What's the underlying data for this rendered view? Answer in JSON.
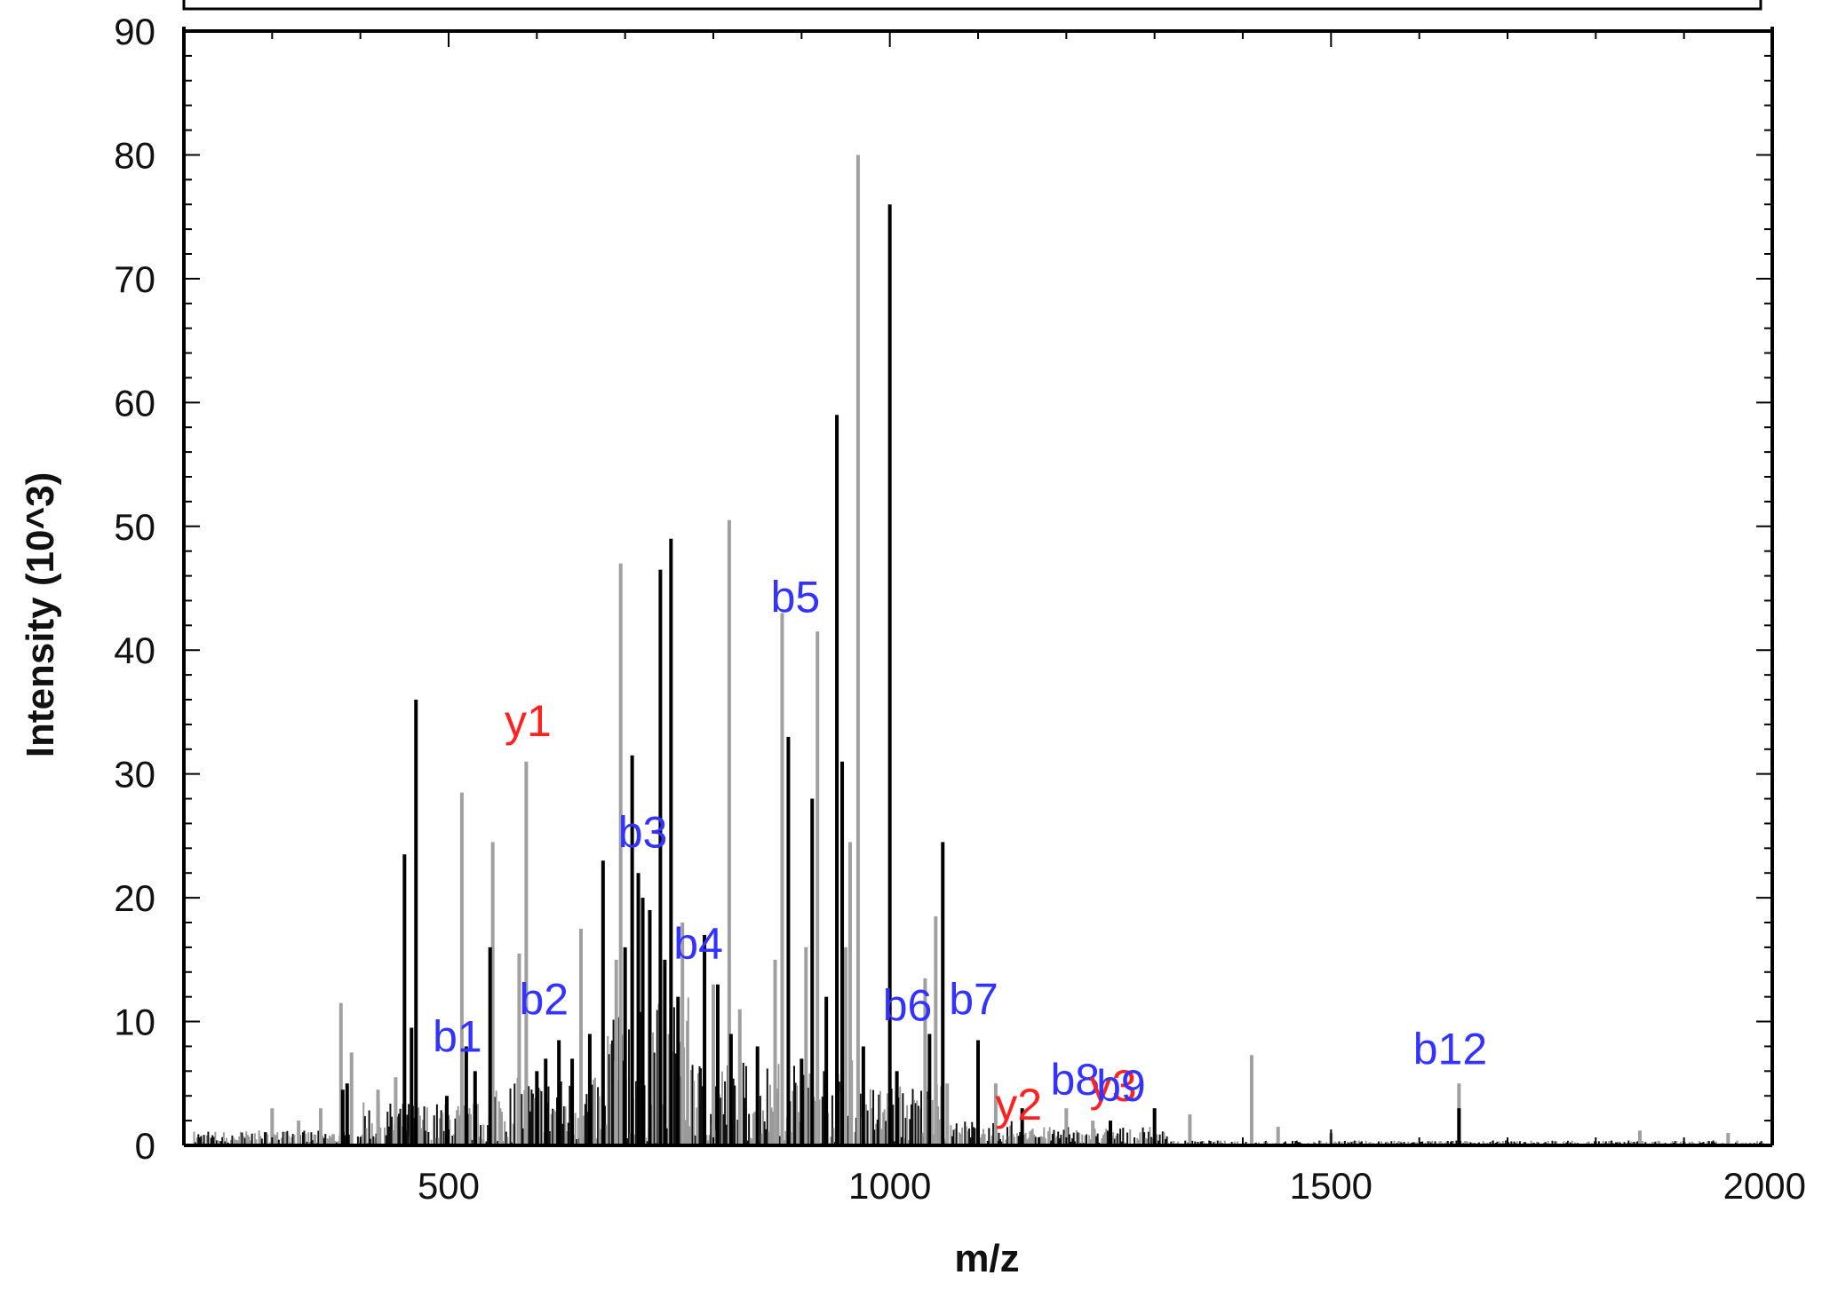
{
  "chart_data": {
    "type": "bar",
    "title_banner": "",
    "xlabel": "m/z",
    "ylabel": "Intensity (10^3)",
    "xlim": [
      200,
      2000
    ],
    "ylim": [
      0,
      90
    ],
    "x_ticks": [
      500,
      1000,
      1500,
      2000
    ],
    "x_tick_labels": [
      "500",
      "1000",
      "1500",
      "2000"
    ],
    "y_ticks": [
      0,
      10,
      20,
      30,
      40,
      50,
      60,
      70,
      80,
      90
    ],
    "y_tick_labels": [
      "0",
      "10",
      "20",
      "30",
      "40",
      "50",
      "60",
      "70",
      "80",
      "90"
    ],
    "grid": false,
    "colors": {
      "annotated_peak": "#000000",
      "other_peak": "#a0a0a0",
      "b_ion": "#3333ff",
      "y_ion": "#ff2020"
    },
    "series": [
      {
        "role": "annotated",
        "peaks": [
          {
            "mz": 380,
            "i": 4.5
          },
          {
            "mz": 385,
            "i": 5
          },
          {
            "mz": 450,
            "i": 23.5
          },
          {
            "mz": 458,
            "i": 9.5
          },
          {
            "mz": 463,
            "i": 36
          },
          {
            "mz": 498,
            "i": 4
          },
          {
            "mz": 520,
            "i": 8
          },
          {
            "mz": 530,
            "i": 6
          },
          {
            "mz": 547,
            "i": 16
          },
          {
            "mz": 600,
            "i": 6
          },
          {
            "mz": 610,
            "i": 7
          },
          {
            "mz": 625,
            "i": 8.5
          },
          {
            "mz": 640,
            "i": 7
          },
          {
            "mz": 660,
            "i": 9
          },
          {
            "mz": 675,
            "i": 23
          },
          {
            "mz": 700,
            "i": 16
          },
          {
            "mz": 708,
            "i": 31.5
          },
          {
            "mz": 715,
            "i": 22
          },
          {
            "mz": 720,
            "i": 20
          },
          {
            "mz": 728,
            "i": 19
          },
          {
            "mz": 740,
            "i": 46.5
          },
          {
            "mz": 745,
            "i": 15
          },
          {
            "mz": 752,
            "i": 49
          },
          {
            "mz": 760,
            "i": 12
          },
          {
            "mz": 790,
            "i": 17
          },
          {
            "mz": 805,
            "i": 13
          },
          {
            "mz": 820,
            "i": 9
          },
          {
            "mz": 850,
            "i": 8
          },
          {
            "mz": 885,
            "i": 33
          },
          {
            "mz": 900,
            "i": 7
          },
          {
            "mz": 912,
            "i": 28
          },
          {
            "mz": 928,
            "i": 12
          },
          {
            "mz": 940,
            "i": 59
          },
          {
            "mz": 946,
            "i": 31
          },
          {
            "mz": 970,
            "i": 8
          },
          {
            "mz": 1000,
            "i": 76
          },
          {
            "mz": 1008,
            "i": 6
          },
          {
            "mz": 1045,
            "i": 9
          },
          {
            "mz": 1060,
            "i": 24.5
          },
          {
            "mz": 1100,
            "i": 8.5
          },
          {
            "mz": 1150,
            "i": 3
          },
          {
            "mz": 1250,
            "i": 2
          },
          {
            "mz": 1300,
            "i": 3
          },
          {
            "mz": 1645,
            "i": 3
          }
        ]
      },
      {
        "role": "unannotated",
        "peaks": [
          {
            "mz": 300,
            "i": 3
          },
          {
            "mz": 330,
            "i": 2
          },
          {
            "mz": 355,
            "i": 3
          },
          {
            "mz": 378,
            "i": 11.5
          },
          {
            "mz": 390,
            "i": 7.5
          },
          {
            "mz": 420,
            "i": 4.5
          },
          {
            "mz": 440,
            "i": 5.5
          },
          {
            "mz": 515,
            "i": 28.5
          },
          {
            "mz": 550,
            "i": 24.5
          },
          {
            "mz": 580,
            "i": 15.5
          },
          {
            "mz": 588,
            "i": 31
          },
          {
            "mz": 650,
            "i": 17.5
          },
          {
            "mz": 690,
            "i": 15
          },
          {
            "mz": 695,
            "i": 47
          },
          {
            "mz": 765,
            "i": 18
          },
          {
            "mz": 800,
            "i": 13
          },
          {
            "mz": 818,
            "i": 50.5
          },
          {
            "mz": 830,
            "i": 11
          },
          {
            "mz": 870,
            "i": 15
          },
          {
            "mz": 878,
            "i": 43
          },
          {
            "mz": 905,
            "i": 16
          },
          {
            "mz": 918,
            "i": 41.5
          },
          {
            "mz": 950,
            "i": 16
          },
          {
            "mz": 955,
            "i": 24.5
          },
          {
            "mz": 964,
            "i": 80
          },
          {
            "mz": 1040,
            "i": 13.5
          },
          {
            "mz": 1052,
            "i": 18.5
          },
          {
            "mz": 1065,
            "i": 5
          },
          {
            "mz": 1120,
            "i": 5
          },
          {
            "mz": 1200,
            "i": 3
          },
          {
            "mz": 1230,
            "i": 2
          },
          {
            "mz": 1340,
            "i": 2.5
          },
          {
            "mz": 1410,
            "i": 7.3
          },
          {
            "mz": 1440,
            "i": 1.5
          },
          {
            "mz": 1500,
            "i": 1
          },
          {
            "mz": 1645,
            "i": 5
          },
          {
            "mz": 1850,
            "i": 1.2
          },
          {
            "mz": 1950,
            "i": 1
          }
        ]
      }
    ],
    "annotations": [
      {
        "label": "b1",
        "mz": 510,
        "y": 7,
        "ion": "b"
      },
      {
        "label": "y1",
        "mz": 590,
        "y": 32.5,
        "ion": "y"
      },
      {
        "label": "b2",
        "mz": 608,
        "y": 10,
        "ion": "b"
      },
      {
        "label": "b3",
        "mz": 720,
        "y": 23.5,
        "ion": "b"
      },
      {
        "label": "b4",
        "mz": 783,
        "y": 14.5,
        "ion": "b"
      },
      {
        "label": "b5",
        "mz": 893,
        "y": 42.5,
        "ion": "b"
      },
      {
        "label": "b6",
        "mz": 1020,
        "y": 9.5,
        "ion": "b"
      },
      {
        "label": "b7",
        "mz": 1095,
        "y": 10,
        "ion": "b"
      },
      {
        "label": "y2",
        "mz": 1146,
        "y": 1.5,
        "ion": "y"
      },
      {
        "label": "b8",
        "mz": 1210,
        "y": 3.5,
        "ion": "b"
      },
      {
        "label": "y3",
        "mz": 1253,
        "y": 3,
        "ion": "y"
      },
      {
        "label": "b9",
        "mz": 1262,
        "y": 3,
        "ion": "b"
      },
      {
        "label": "b12",
        "mz": 1635,
        "y": 6,
        "ion": "b"
      }
    ]
  }
}
